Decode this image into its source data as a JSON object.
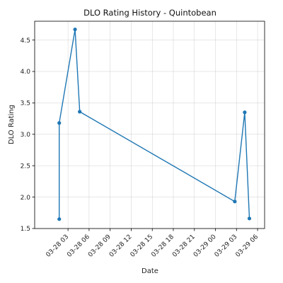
{
  "chart_data": {
    "type": "line",
    "title": "DLO Rating History - Quintobean",
    "xlabel": "Date",
    "ylabel": "DLO Rating",
    "xlim": [
      "2024-03-27T22:15",
      "2024-03-29T07:00"
    ],
    "ylim": [
      1.5,
      4.8
    ],
    "grid": true,
    "x_tick_labels": [
      "03-28 03",
      "03-28 06",
      "03-28 09",
      "03-28 12",
      "03-28 15",
      "03-28 18",
      "03-28 21",
      "03-29 00",
      "03-29 03",
      "03-29 06"
    ],
    "x_ticks": [
      "2024-03-28T03:00",
      "2024-03-28T06:00",
      "2024-03-28T09:00",
      "2024-03-28T12:00",
      "2024-03-28T15:00",
      "2024-03-28T18:00",
      "2024-03-28T21:00",
      "2024-03-29T00:00",
      "2024-03-29T03:00",
      "2024-03-29T06:00"
    ],
    "y_tick_labels": [
      "1.5",
      "2.0",
      "2.5",
      "3.0",
      "3.5",
      "4.0",
      "4.5"
    ],
    "y_ticks": [
      1.5,
      2.0,
      2.5,
      3.0,
      3.5,
      4.0,
      4.5
    ],
    "series": [
      {
        "color": "#1f77b4",
        "x": [
          "2024-03-28T01:45",
          "2024-03-28T01:45",
          "2024-03-28T04:00",
          "2024-03-28T04:40",
          "2024-03-29T02:45",
          "2024-03-29T04:10",
          "2024-03-29T04:50"
        ],
        "y": [
          1.65,
          3.18,
          4.67,
          3.36,
          1.93,
          3.35,
          1.66
        ]
      }
    ]
  }
}
